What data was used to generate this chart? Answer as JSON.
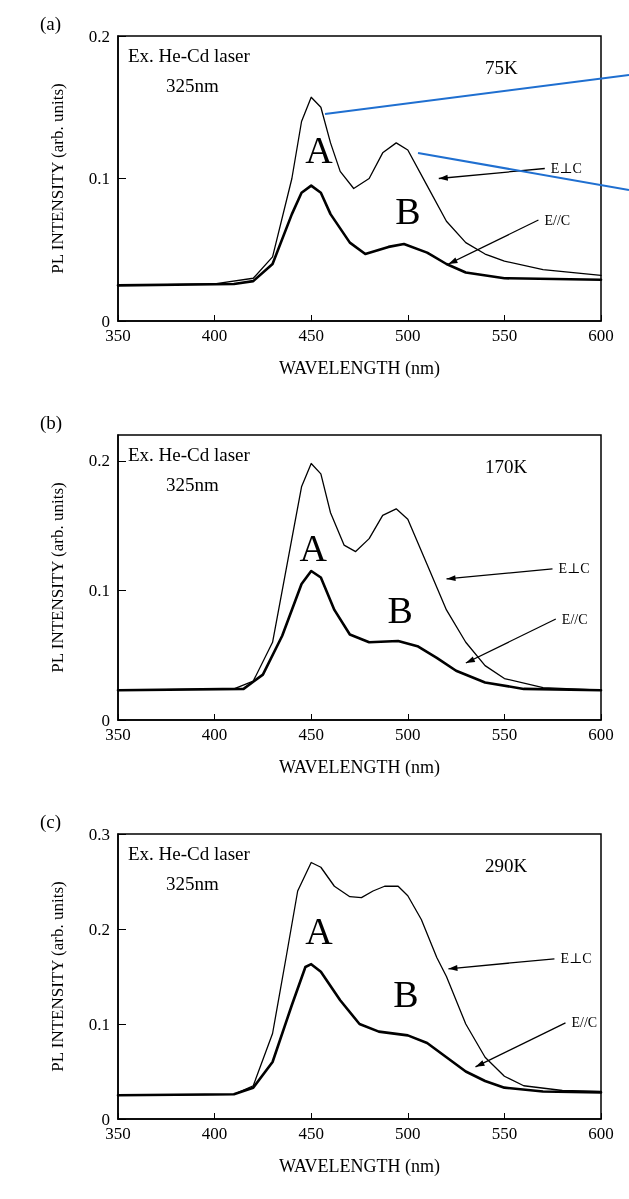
{
  "chart_data": [
    {
      "type": "line",
      "xlabel": "WAVELENGTH (nm)",
      "ylabel": "PL INTENSITY (arb. units)",
      "xlim": [
        350,
        600
      ],
      "xticks": [
        350,
        400,
        450,
        500,
        550,
        600
      ],
      "ylim": [
        0,
        0.2
      ],
      "yticks": [
        0,
        0.1,
        0.2
      ],
      "grid": false,
      "marker": "none",
      "line_style": "solid",
      "annotations": [
        "(a)",
        "Ex. He-Cd laser",
        "325nm",
        "75K",
        "A",
        "B",
        "E⊥C",
        {
          "text": "E//C",
          "x": 520,
          "y": 0.04
        }
      ],
      "series": [
        {
          "color": "#000000",
          "x": [
            350,
            400,
            420,
            430,
            440,
            445,
            450,
            455,
            460,
            465,
            472,
            480,
            487,
            494,
            500,
            510,
            520,
            530,
            540,
            550,
            570,
            600
          ],
          "values": [
            0.025,
            0.026,
            0.03,
            0.045,
            0.1,
            0.14,
            0.157,
            0.15,
            0.125,
            0.105,
            0.093,
            0.1,
            0.118,
            0.125,
            0.12,
            0.095,
            0.07,
            0.055,
            0.047,
            0.042,
            0.036,
            0.032
          ]
        },
        {
          "color": "#000000",
          "x": [
            350,
            410,
            420,
            430,
            440,
            445,
            450,
            455,
            460,
            470,
            478,
            490,
            498,
            510,
            520,
            530,
            550,
            600
          ],
          "values": [
            0.025,
            0.026,
            0.028,
            0.04,
            0.075,
            0.09,
            0.095,
            0.09,
            0.075,
            0.055,
            0.047,
            0.052,
            0.054,
            0.048,
            0.04,
            0.034,
            0.03,
            0.029
          ]
        }
      ]
    },
    {
      "type": "line",
      "xlabel": "WAVELENGTH (nm)",
      "ylabel": "PL INTENSITY (arb. units)",
      "xlim": [
        350,
        600
      ],
      "xticks": [
        350,
        400,
        450,
        500,
        550,
        600
      ],
      "ylim": [
        0,
        0.22
      ],
      "yticks": [
        0,
        0.1,
        0.2
      ],
      "grid": false,
      "marker": "none",
      "line_style": "solid",
      "annotations": [
        "(b)",
        "Ex. He-Cd laser",
        "325nm",
        "170K",
        "A",
        "B",
        "E⊥C",
        "E//C"
      ],
      "series": [
        {
          "color": "#000000",
          "x": [
            350,
            410,
            420,
            430,
            440,
            445,
            450,
            455,
            460,
            467,
            473,
            480,
            487,
            494,
            500,
            510,
            520,
            530,
            540,
            550,
            570,
            600
          ],
          "values": [
            0.023,
            0.024,
            0.03,
            0.06,
            0.14,
            0.18,
            0.198,
            0.19,
            0.16,
            0.135,
            0.13,
            0.14,
            0.158,
            0.163,
            0.155,
            0.12,
            0.085,
            0.06,
            0.042,
            0.032,
            0.025,
            0.023
          ]
        },
        {
          "color": "#000000",
          "x": [
            350,
            415,
            425,
            435,
            445,
            450,
            455,
            462,
            470,
            480,
            495,
            505,
            515,
            525,
            540,
            560,
            600
          ],
          "values": [
            0.023,
            0.024,
            0.035,
            0.065,
            0.105,
            0.115,
            0.11,
            0.085,
            0.066,
            0.06,
            0.061,
            0.057,
            0.048,
            0.038,
            0.029,
            0.024,
            0.023
          ]
        }
      ]
    },
    {
      "type": "line",
      "xlabel": "WAVELENGTH (nm)",
      "ylabel": "PL INTENSITY (arb. units)",
      "xlim": [
        350,
        600
      ],
      "xticks": [
        350,
        400,
        450,
        500,
        550,
        600
      ],
      "ylim": [
        0,
        0.3
      ],
      "yticks": [
        0,
        0.1,
        0.2,
        0.3
      ],
      "grid": false,
      "marker": "none",
      "line_style": "solid",
      "annotations": [
        "(c)",
        "Ex. He-Cd laser",
        "325nm",
        "290K",
        "A",
        "B",
        "E⊥C",
        "E//C"
      ],
      "series": [
        {
          "color": "#000000",
          "x": [
            350,
            410,
            420,
            430,
            437,
            443,
            450,
            455,
            462,
            470,
            476,
            482,
            488,
            495,
            500,
            507,
            515,
            520,
            530,
            540,
            550,
            560,
            580,
            600
          ],
          "values": [
            0.025,
            0.026,
            0.035,
            0.09,
            0.17,
            0.24,
            0.27,
            0.265,
            0.245,
            0.234,
            0.233,
            0.24,
            0.245,
            0.245,
            0.235,
            0.21,
            0.17,
            0.15,
            0.1,
            0.065,
            0.045,
            0.035,
            0.03,
            0.029
          ]
        },
        {
          "color": "#000000",
          "x": [
            350,
            410,
            420,
            430,
            440,
            447,
            450,
            455,
            465,
            475,
            485,
            500,
            510,
            520,
            530,
            540,
            550,
            570,
            600
          ],
          "values": [
            0.025,
            0.026,
            0.033,
            0.06,
            0.12,
            0.16,
            0.163,
            0.155,
            0.125,
            0.1,
            0.092,
            0.088,
            0.08,
            0.065,
            0.05,
            0.04,
            0.033,
            0.029,
            0.028
          ]
        }
      ]
    }
  ]
}
